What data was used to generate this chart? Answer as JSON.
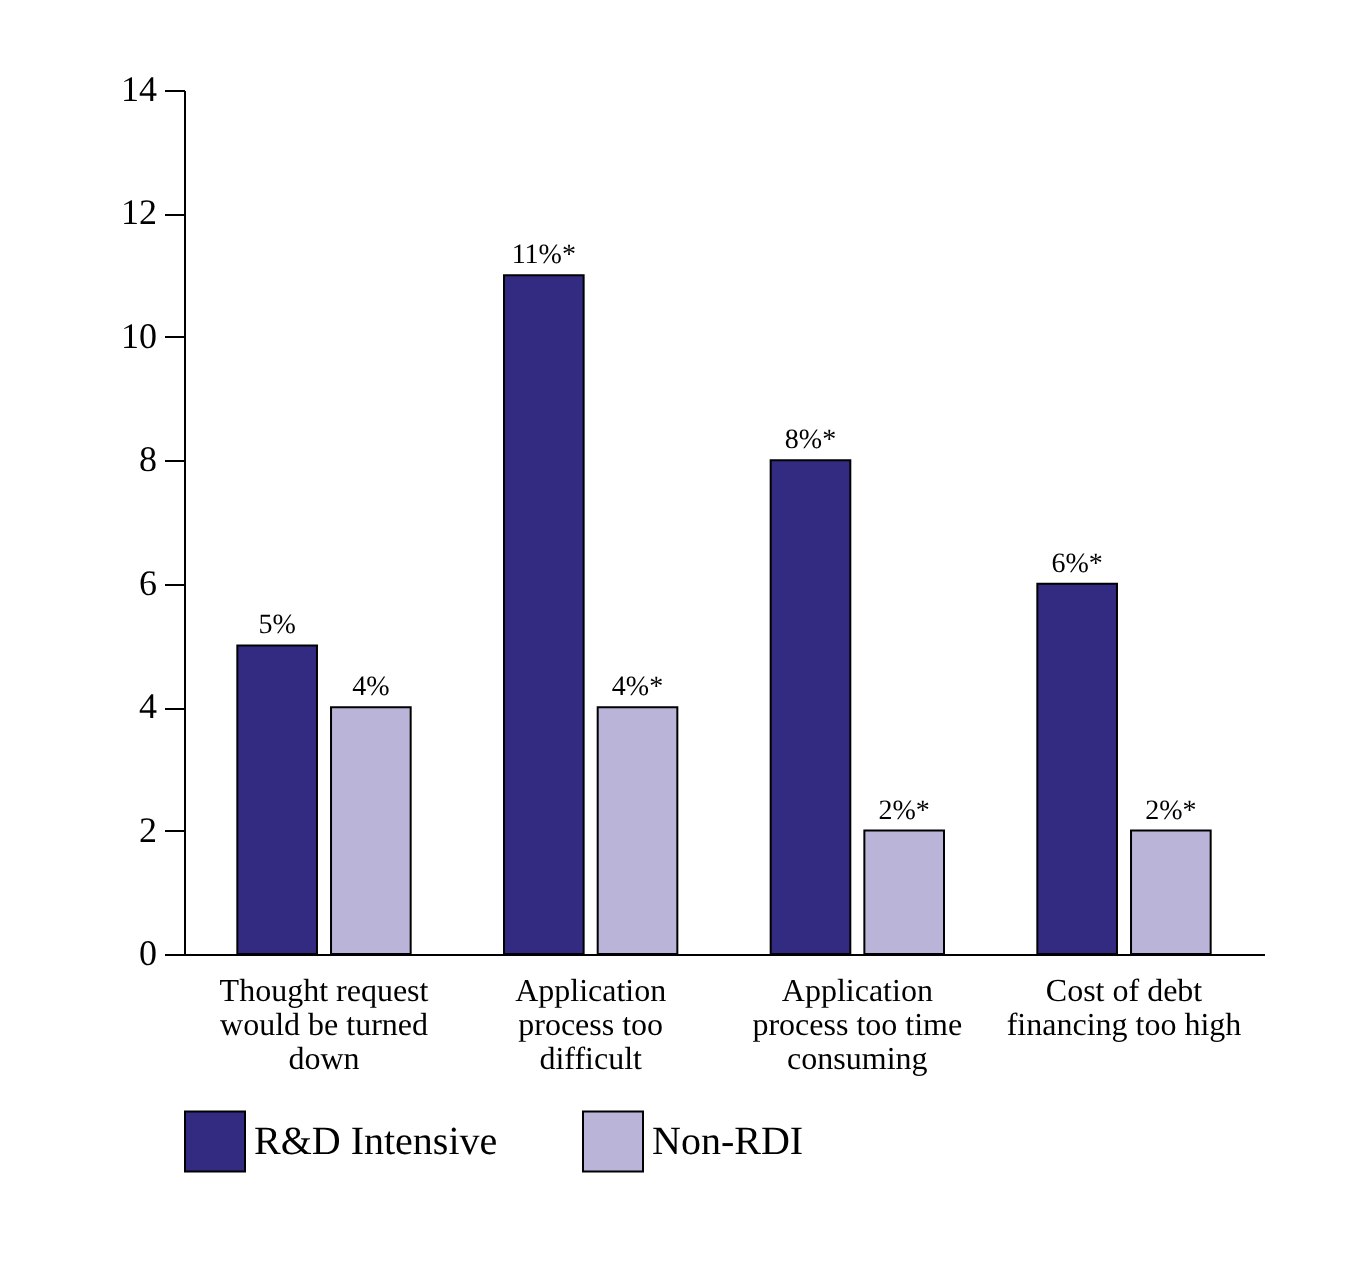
{
  "chart_data": {
    "type": "bar",
    "categories": [
      "Thought request would be turned down",
      "Application process too difficult",
      "Application process too time consuming",
      "Cost of debt financing too high"
    ],
    "series": [
      {
        "name": "R&D Intensive",
        "color": "#332a82",
        "values": [
          5,
          11,
          8,
          6
        ],
        "value_labels": [
          "5%",
          "11%*",
          "8%*",
          "6%*"
        ]
      },
      {
        "name": "Non-RDI",
        "color": "#b9b4d8",
        "values": [
          4,
          4,
          2,
          2
        ],
        "value_labels": [
          "4%",
          "4%*",
          "2%*",
          "2%*"
        ]
      }
    ],
    "ylim": [
      0,
      14
    ],
    "yticks": [
      0,
      2,
      4,
      6,
      8,
      10,
      12,
      14
    ],
    "legend": "bottom"
  }
}
